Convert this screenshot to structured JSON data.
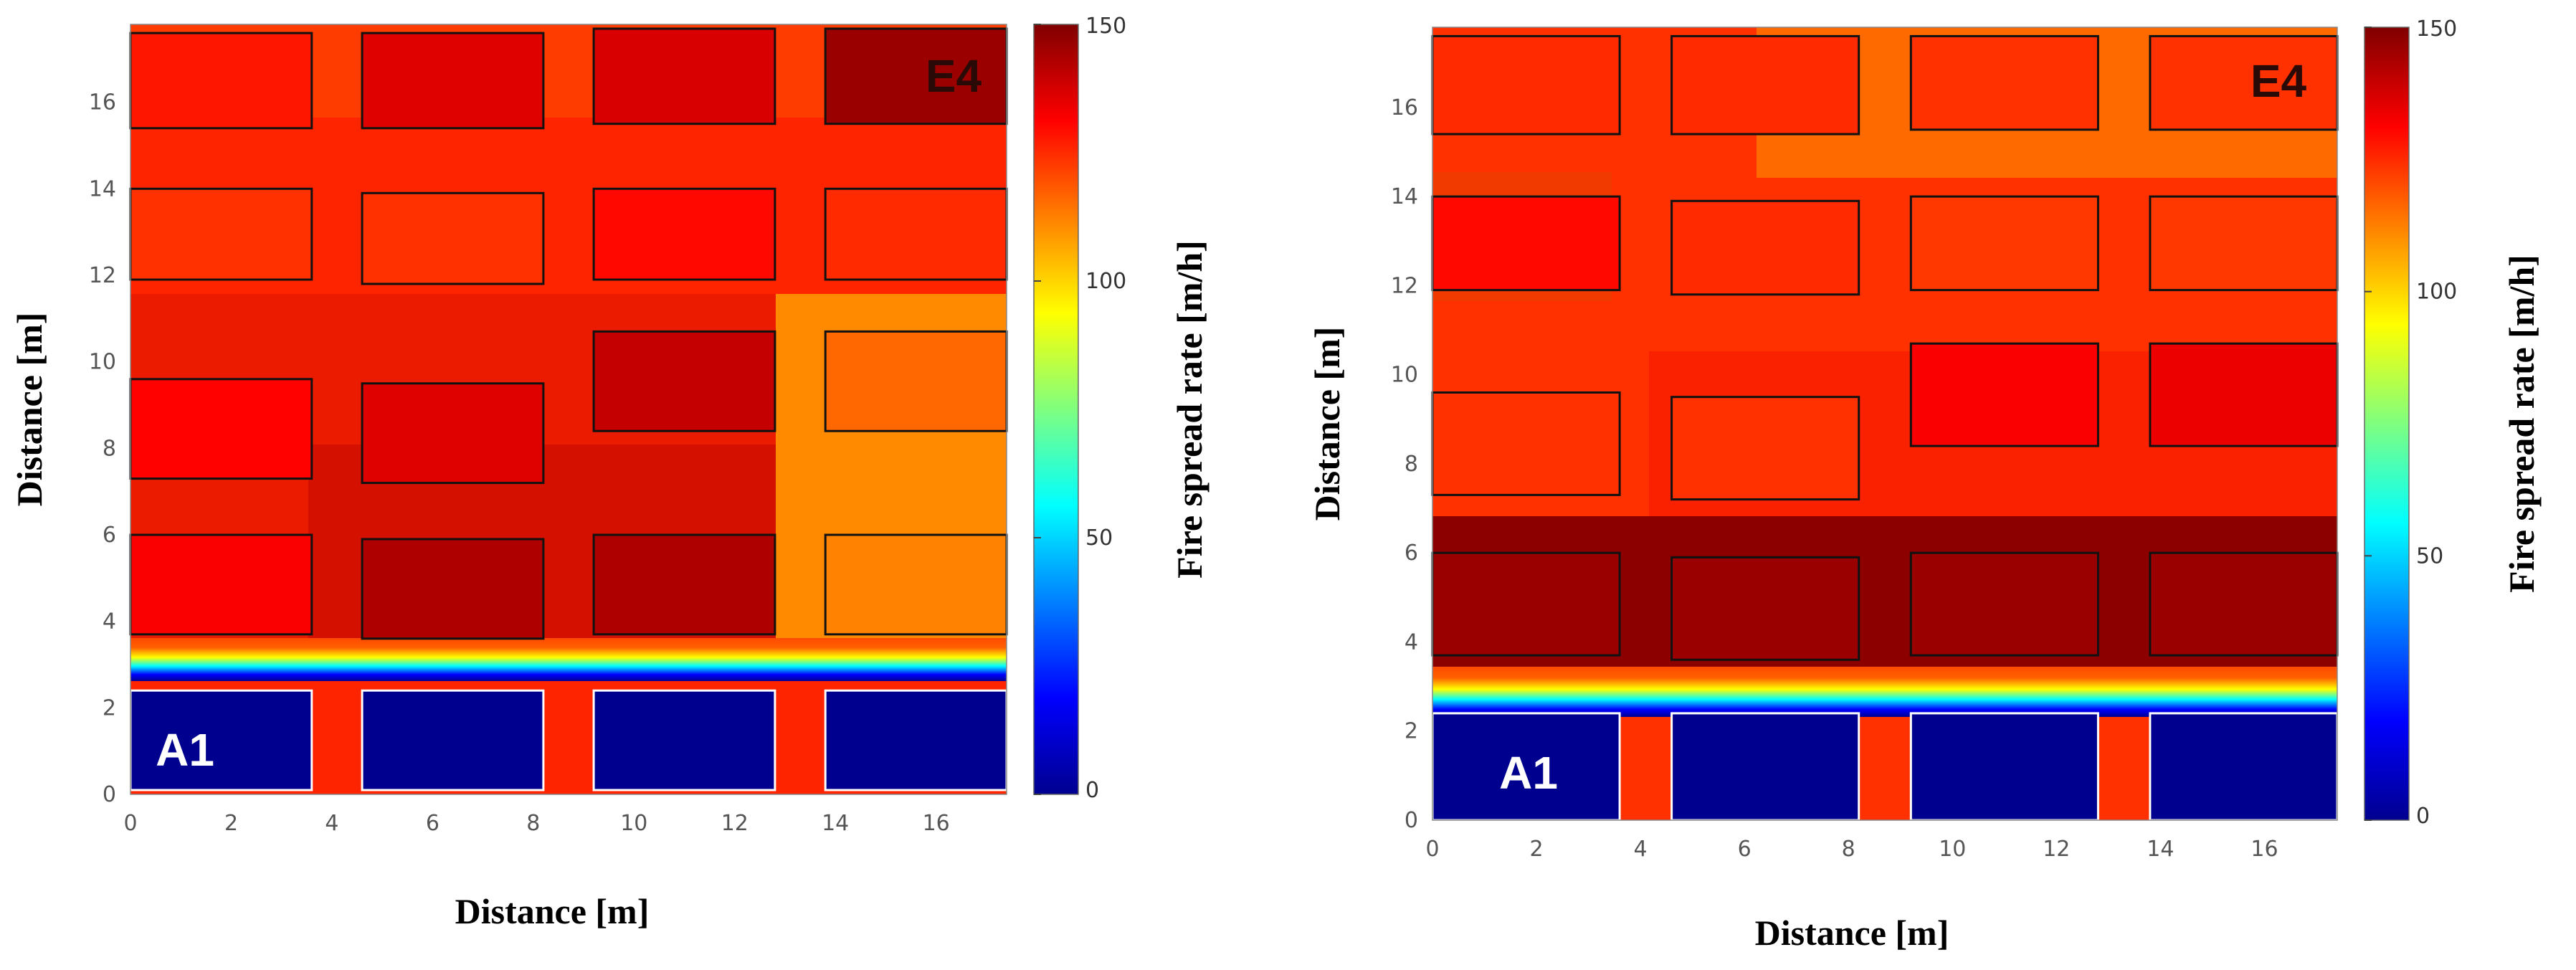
{
  "chart_data": [
    {
      "type": "heatmap",
      "title": "",
      "xlabel": "Distance [m]",
      "ylabel": "Distance [m]",
      "colorbar_label": "Fire spread rate [m/h]",
      "xlim": [
        0,
        17.4
      ],
      "ylim": [
        0,
        17.8
      ],
      "xticks": [
        0,
        2,
        4,
        6,
        8,
        10,
        12,
        14,
        16
      ],
      "yticks": [
        0,
        2,
        4,
        6,
        8,
        10,
        12,
        14,
        16
      ],
      "colorbar_range": [
        0,
        150
      ],
      "colorbar_ticks": [
        "150",
        "100",
        "50",
        "0"
      ],
      "zone_labels": {
        "A1": "A1",
        "E4": "E4"
      },
      "zone_label_colors": {
        "A1": "#ffffff",
        "E4": "#2a0a06"
      },
      "base_fill_rate": 126,
      "buildings": [
        {
          "x0": 0.0,
          "x1": 3.6,
          "y0": 0.1,
          "y1": 2.4,
          "rate": 0,
          "border": "white"
        },
        {
          "x0": 4.6,
          "x1": 8.2,
          "y0": 0.1,
          "y1": 2.4,
          "rate": 0,
          "border": "white"
        },
        {
          "x0": 9.2,
          "x1": 12.8,
          "y0": 0.1,
          "y1": 2.4,
          "rate": 0,
          "border": "white"
        },
        {
          "x0": 13.8,
          "x1": 17.4,
          "y0": 0.1,
          "y1": 2.4,
          "rate": 0,
          "border": "white"
        },
        {
          "x0": 0.0,
          "x1": 3.6,
          "y0": 3.7,
          "y1": 6.0,
          "rate": 132,
          "border": "black"
        },
        {
          "x0": 4.6,
          "x1": 8.2,
          "y0": 3.6,
          "y1": 5.9,
          "rate": 143,
          "border": "black"
        },
        {
          "x0": 9.2,
          "x1": 12.8,
          "y0": 3.7,
          "y1": 6.0,
          "rate": 143,
          "border": "black"
        },
        {
          "x0": 13.8,
          "x1": 17.4,
          "y0": 3.7,
          "y1": 6.0,
          "rate": 112,
          "border": "black"
        },
        {
          "x0": 0.0,
          "x1": 3.6,
          "y0": 7.3,
          "y1": 9.6,
          "rate": 131,
          "border": "black"
        },
        {
          "x0": 4.6,
          "x1": 8.2,
          "y0": 7.2,
          "y1": 9.5,
          "rate": 136,
          "border": "black"
        },
        {
          "x0": 9.2,
          "x1": 12.8,
          "y0": 8.4,
          "y1": 10.7,
          "rate": 140,
          "border": "black"
        },
        {
          "x0": 13.8,
          "x1": 17.4,
          "y0": 8.4,
          "y1": 10.7,
          "rate": 116,
          "border": "black"
        },
        {
          "x0": 0.0,
          "x1": 3.6,
          "y0": 11.9,
          "y1": 14.0,
          "rate": 124,
          "border": "black"
        },
        {
          "x0": 4.6,
          "x1": 8.2,
          "y0": 11.8,
          "y1": 13.9,
          "rate": 124,
          "border": "black"
        },
        {
          "x0": 9.2,
          "x1": 12.8,
          "y0": 11.9,
          "y1": 14.0,
          "rate": 130,
          "border": "black"
        },
        {
          "x0": 13.8,
          "x1": 17.4,
          "y0": 11.9,
          "y1": 14.0,
          "rate": 125,
          "border": "black"
        },
        {
          "x0": 0.0,
          "x1": 3.6,
          "y0": 15.4,
          "y1": 17.6,
          "rate": 128,
          "border": "black"
        },
        {
          "x0": 4.6,
          "x1": 8.2,
          "y0": 15.4,
          "y1": 17.6,
          "rate": 136,
          "border": "black"
        },
        {
          "x0": 9.2,
          "x1": 12.8,
          "y0": 15.5,
          "y1": 17.7,
          "rate": 137,
          "border": "black"
        },
        {
          "x0": 13.8,
          "x1": 17.4,
          "y0": 15.5,
          "y1": 17.7,
          "rate": 146,
          "border": "black"
        }
      ]
    },
    {
      "type": "heatmap",
      "title": "",
      "xlabel": "Distance [m]",
      "ylabel": "Distance [m]",
      "colorbar_label": "Fire spread rate [m/h]",
      "xlim": [
        0,
        17.4
      ],
      "ylim": [
        0,
        17.8
      ],
      "xticks": [
        0,
        2,
        4,
        6,
        8,
        10,
        12,
        14,
        16
      ],
      "yticks": [
        0,
        2,
        4,
        6,
        8,
        10,
        12,
        14,
        16
      ],
      "colorbar_range": [
        0,
        150
      ],
      "colorbar_ticks": [
        "150",
        "100",
        "50",
        "0"
      ],
      "zone_labels": {
        "A1": "A1",
        "E4": "E4"
      },
      "zone_label_colors": {
        "A1": "#ffffff",
        "E4": "#2a0a06"
      },
      "base_fill_rate": 124,
      "buildings": [
        {
          "x0": 0.0,
          "x1": 3.6,
          "y0": 0.0,
          "y1": 2.4,
          "rate": 0,
          "border": "white"
        },
        {
          "x0": 4.6,
          "x1": 8.2,
          "y0": 0.0,
          "y1": 2.4,
          "rate": 0,
          "border": "white"
        },
        {
          "x0": 9.2,
          "x1": 12.8,
          "y0": 0.0,
          "y1": 2.4,
          "rate": 0,
          "border": "white"
        },
        {
          "x0": 13.8,
          "x1": 17.4,
          "y0": 0.0,
          "y1": 2.4,
          "rate": 0,
          "border": "white"
        },
        {
          "x0": 0.0,
          "x1": 3.6,
          "y0": 3.7,
          "y1": 6.0,
          "rate": 146,
          "border": "black"
        },
        {
          "x0": 4.6,
          "x1": 8.2,
          "y0": 3.6,
          "y1": 5.9,
          "rate": 146,
          "border": "black"
        },
        {
          "x0": 9.2,
          "x1": 12.8,
          "y0": 3.7,
          "y1": 6.0,
          "rate": 146,
          "border": "black"
        },
        {
          "x0": 13.8,
          "x1": 17.4,
          "y0": 3.7,
          "y1": 6.0,
          "rate": 146,
          "border": "black"
        },
        {
          "x0": 0.0,
          "x1": 3.6,
          "y0": 7.3,
          "y1": 9.6,
          "rate": 124,
          "border": "black"
        },
        {
          "x0": 4.6,
          "x1": 8.2,
          "y0": 7.2,
          "y1": 9.5,
          "rate": 124,
          "border": "black"
        },
        {
          "x0": 9.2,
          "x1": 12.8,
          "y0": 8.4,
          "y1": 10.7,
          "rate": 132,
          "border": "black"
        },
        {
          "x0": 13.8,
          "x1": 17.4,
          "y0": 8.4,
          "y1": 10.7,
          "rate": 134,
          "border": "black"
        },
        {
          "x0": 0.0,
          "x1": 3.6,
          "y0": 11.9,
          "y1": 14.0,
          "rate": 130,
          "border": "black"
        },
        {
          "x0": 4.6,
          "x1": 8.2,
          "y0": 11.8,
          "y1": 13.9,
          "rate": 125,
          "border": "black"
        },
        {
          "x0": 9.2,
          "x1": 12.8,
          "y0": 11.9,
          "y1": 14.0,
          "rate": 123,
          "border": "black"
        },
        {
          "x0": 13.8,
          "x1": 17.4,
          "y0": 11.9,
          "y1": 14.0,
          "rate": 123,
          "border": "black"
        },
        {
          "x0": 0.0,
          "x1": 3.6,
          "y0": 15.4,
          "y1": 17.6,
          "rate": 125,
          "border": "black"
        },
        {
          "x0": 4.6,
          "x1": 8.2,
          "y0": 15.4,
          "y1": 17.6,
          "rate": 125,
          "border": "black"
        },
        {
          "x0": 9.2,
          "x1": 12.8,
          "y0": 15.5,
          "y1": 17.6,
          "rate": 124,
          "border": "black"
        },
        {
          "x0": 13.8,
          "x1": 17.4,
          "y0": 15.5,
          "y1": 17.6,
          "rate": 124,
          "border": "black"
        }
      ]
    }
  ]
}
